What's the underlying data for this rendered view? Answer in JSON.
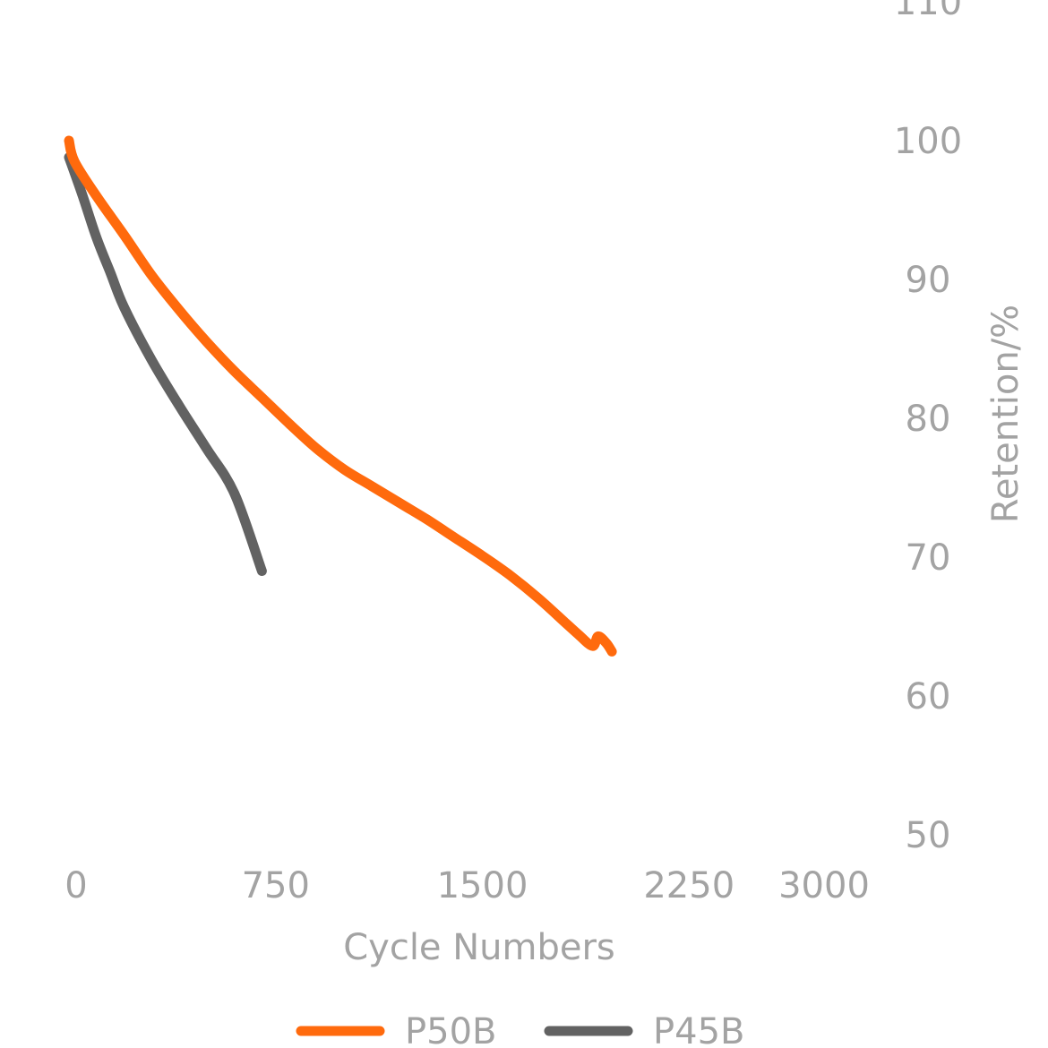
{
  "chart_data": {
    "type": "line",
    "title": "",
    "xlabel": "Cycle Numbers",
    "ylabel": "Retention/%",
    "xlim": [
      0,
      3000
    ],
    "ylim": [
      50,
      110
    ],
    "xticks": [
      "0",
      "750",
      "1500",
      "2250",
      "3000"
    ],
    "yticks": [
      "110",
      "100",
      "90",
      "80",
      "70",
      "60",
      "50"
    ],
    "grid": false,
    "y_axis_position": "right",
    "legend_position": "bottom-center",
    "series": [
      {
        "name": "P50B",
        "color": "#ff6a0d",
        "x": [
          0,
          20,
          100,
          200,
          300,
          400,
          500,
          600,
          700,
          800,
          900,
          1000,
          1100,
          1200,
          1300,
          1400,
          1500,
          1600,
          1700,
          1800,
          1850,
          1900,
          1920,
          1950,
          1970
        ],
        "y": [
          100,
          98.5,
          96,
          93.2,
          90.3,
          87.8,
          85.5,
          83.4,
          81.5,
          79.6,
          77.8,
          76.3,
          75.1,
          73.9,
          72.7,
          71.4,
          70.1,
          68.7,
          67.1,
          65.3,
          64.4,
          63.6,
          64.3,
          63.8,
          63.2
        ]
      },
      {
        "name": "P45B",
        "color": "#626262",
        "x": [
          0,
          50,
          100,
          150,
          200,
          300,
          400,
          500,
          600,
          700
        ],
        "y": [
          98.8,
          96,
          93,
          90.5,
          88,
          84.2,
          80.9,
          77.8,
          74.6,
          69
        ]
      }
    ]
  }
}
